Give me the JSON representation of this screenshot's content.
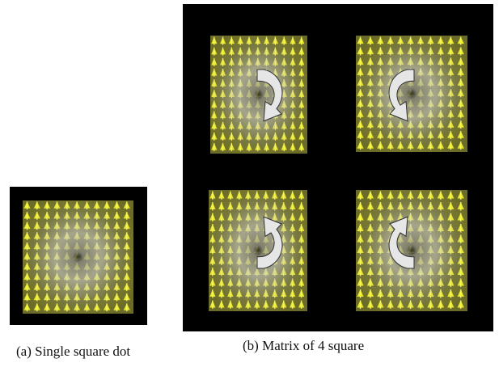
{
  "figure": {
    "panels": [
      {
        "caption": "(a) Single square dot"
      },
      {
        "caption": "(b) Matrix of 4 square"
      }
    ]
  }
}
